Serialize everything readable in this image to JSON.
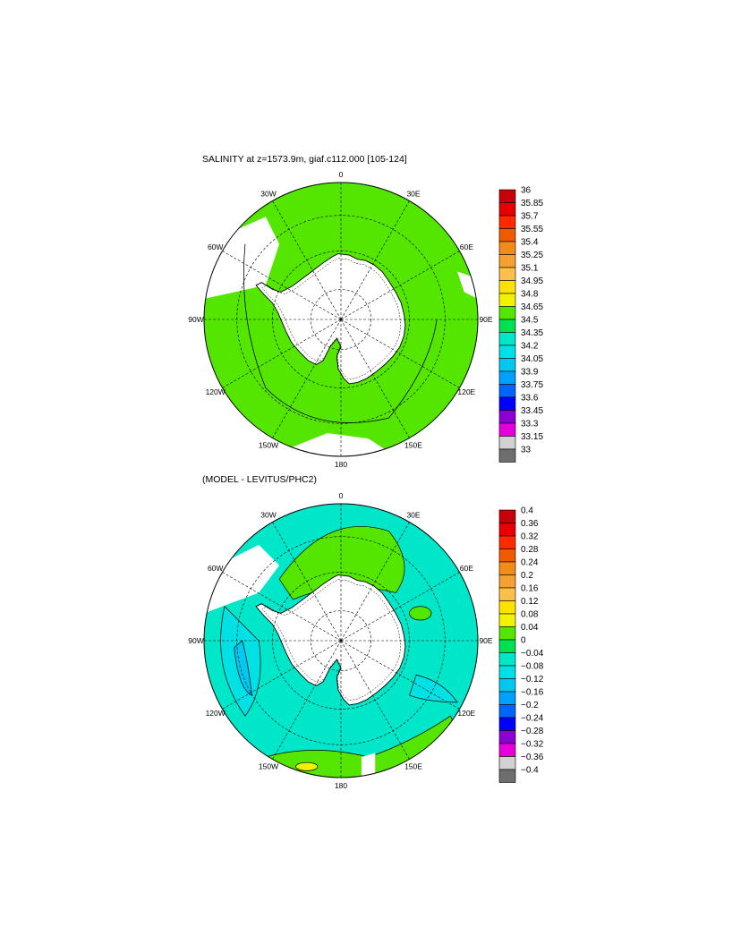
{
  "panels": [
    {
      "title": "SALINITY at z=1573.9m, giaf.c112.000 [105-124]",
      "lon_labels": [
        "0",
        "30E",
        "60E",
        "90E",
        "120E",
        "150E",
        "180",
        "150W",
        "120W",
        "90W",
        "60W",
        "30W"
      ],
      "colorbar": {
        "labels": [
          "36",
          "35.85",
          "35.7",
          "35.55",
          "35.4",
          "35.25",
          "35.1",
          "34.95",
          "34.8",
          "34.65",
          "34.5",
          "34.35",
          "34.2",
          "34.05",
          "33.9",
          "33.75",
          "33.6",
          "33.45",
          "33.3",
          "33.15",
          "33"
        ],
        "colors": [
          "#c8000a",
          "#e60000",
          "#ff2a00",
          "#f05a00",
          "#f28c19",
          "#f5a032",
          "#fac04b",
          "#fde100",
          "#f2f200",
          "#55e600",
          "#00e050",
          "#00e6c8",
          "#00e1e6",
          "#00c8f0",
          "#00a0ff",
          "#0064ff",
          "#0000ff",
          "#8c00d2",
          "#e600dc",
          "#d2d2d2",
          "#6e6e6e"
        ]
      }
    },
    {
      "title": "(MODEL - LEVITUS/PHC2)",
      "lon_labels": [
        "0",
        "30E",
        "60E",
        "90E",
        "120E",
        "150E",
        "180",
        "150W",
        "120W",
        "90W",
        "60W",
        "30W"
      ],
      "colorbar": {
        "labels": [
          "0.4",
          "0.36",
          "0.32",
          "0.28",
          "0.24",
          "0.2",
          "0.16",
          "0.12",
          "0.08",
          "0.04",
          "0",
          "−0.04",
          "−0.08",
          "−0.12",
          "−0.16",
          "−0.2",
          "−0.24",
          "−0.28",
          "−0.32",
          "−0.36",
          "−0.4"
        ],
        "colors": [
          "#c8000a",
          "#e60000",
          "#ff2a00",
          "#f05a00",
          "#f28c19",
          "#f5a032",
          "#fac04b",
          "#fde100",
          "#f2f200",
          "#55e600",
          "#00e050",
          "#00e6c8",
          "#00e1e6",
          "#00c8f0",
          "#00a0ff",
          "#0064ff",
          "#0000ff",
          "#8c00d2",
          "#e600dc",
          "#d2d2d2",
          "#6e6e6e"
        ]
      }
    }
  ],
  "colors": {
    "ocean_green": "#55e600",
    "ocean_cyan": "#00e6c8",
    "ocean_lightblue": "#00e1e6",
    "land": "#ffffff",
    "coast": "#000000"
  }
}
